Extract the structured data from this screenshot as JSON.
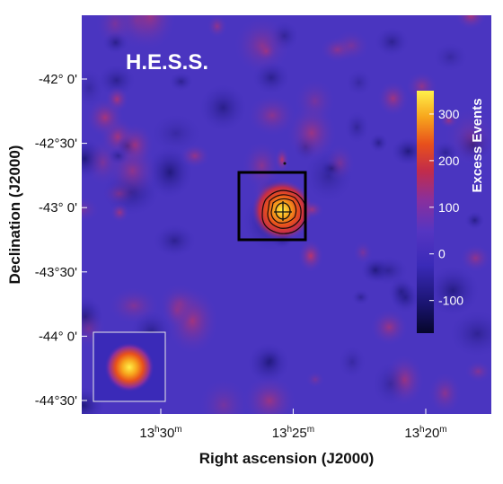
{
  "chart_data": {
    "type": "heatmap",
    "title": "H.E.S.S.",
    "xlabel": "Right ascension (J2000)",
    "ylabel": "Declination (J2000)",
    "x_ticks": [
      {
        "main": "13",
        "unit1": "h",
        "mid": "30",
        "unit2": "m",
        "ra_hours": 13.5
      },
      {
        "main": "13",
        "unit1": "h",
        "mid": "25",
        "unit2": "m",
        "ra_hours": 13.4167
      },
      {
        "main": "13",
        "unit1": "h",
        "mid": "20",
        "unit2": "m",
        "ra_hours": 13.3333
      }
    ],
    "y_ticks": [
      {
        "label": "-42° 0'",
        "dec_deg": -42.0
      },
      {
        "label": "-42°30'",
        "dec_deg": -42.5
      },
      {
        "label": "-43° 0'",
        "dec_deg": -43.0
      },
      {
        "label": "-43°30'",
        "dec_deg": -43.5
      },
      {
        "label": "-44° 0'",
        "dec_deg": -44.0
      },
      {
        "label": "-44°30'",
        "dec_deg": -44.5
      }
    ],
    "colorbar": {
      "label": "Excess Events",
      "range": [
        -170,
        350
      ],
      "ticks": [
        {
          "value": 300,
          "label": "300"
        },
        {
          "value": 200,
          "label": "200"
        },
        {
          "value": 100,
          "label": "100"
        },
        {
          "value": 0,
          "label": "0"
        },
        {
          "value": -100,
          "label": "-100"
        }
      ],
      "colors": [
        "#06062a",
        "#1a1470",
        "#3a2ab8",
        "#5535c2",
        "#8a2f9c",
        "#c22c4a",
        "#e8501c",
        "#f7a41c",
        "#fff04a"
      ]
    },
    "source": {
      "ra_hours": 13.42,
      "dec_deg": -43.0,
      "peak_excess": 330
    },
    "psf_inset": {
      "peak_excess": 340
    },
    "box_region": {
      "ra_min": 13.4,
      "ra_max": 13.45,
      "dec_min": -43.25,
      "dec_max": -42.85
    }
  }
}
